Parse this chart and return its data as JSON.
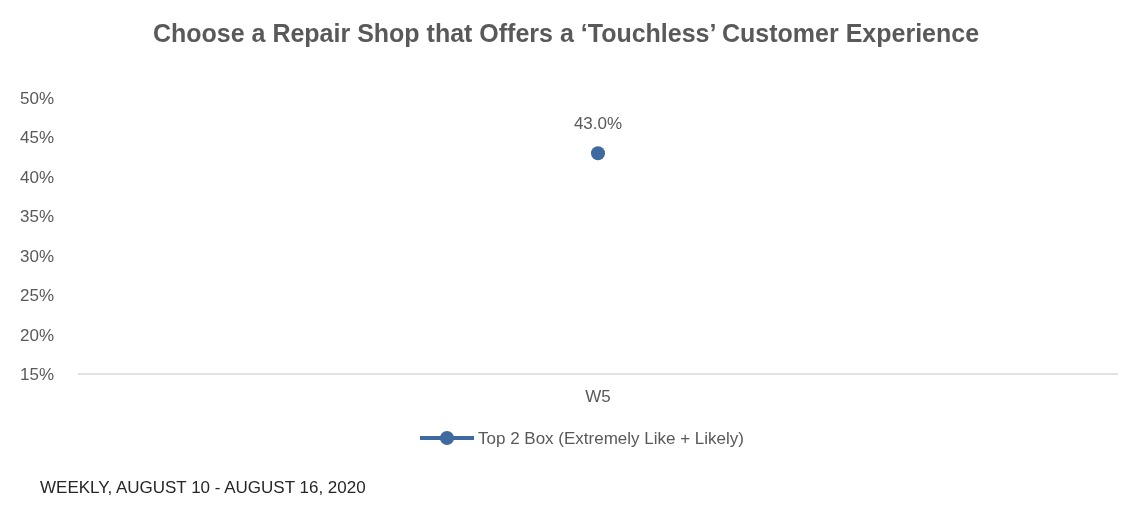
{
  "chart_data": {
    "type": "line",
    "title": "Choose a Repair Shop that Offers a ‘Touchless’ Customer Experience",
    "categories": [
      "W5"
    ],
    "series": [
      {
        "name": "Top 2 Box (Extremely Like + Likely)",
        "color": "#3f6aa0",
        "values": [
          43
        ],
        "value_labels": [
          "43.0%"
        ]
      }
    ],
    "ylim": [
      15,
      50
    ],
    "yticks": [
      {
        "value": 15,
        "label": "15%"
      },
      {
        "value": 20,
        "label": "20%"
      },
      {
        "value": 25,
        "label": "25%"
      },
      {
        "value": 30,
        "label": "30%"
      },
      {
        "value": 35,
        "label": "35%"
      },
      {
        "value": 40,
        "label": "40%"
      },
      {
        "value": 45,
        "label": "45%"
      },
      {
        "value": 50,
        "label": "50%"
      }
    ],
    "marker": "circle",
    "legend": "bottom",
    "grid": false,
    "annotations": [
      "WEEKLY, AUGUST 10 - AUGUST 16, 2020"
    ]
  }
}
